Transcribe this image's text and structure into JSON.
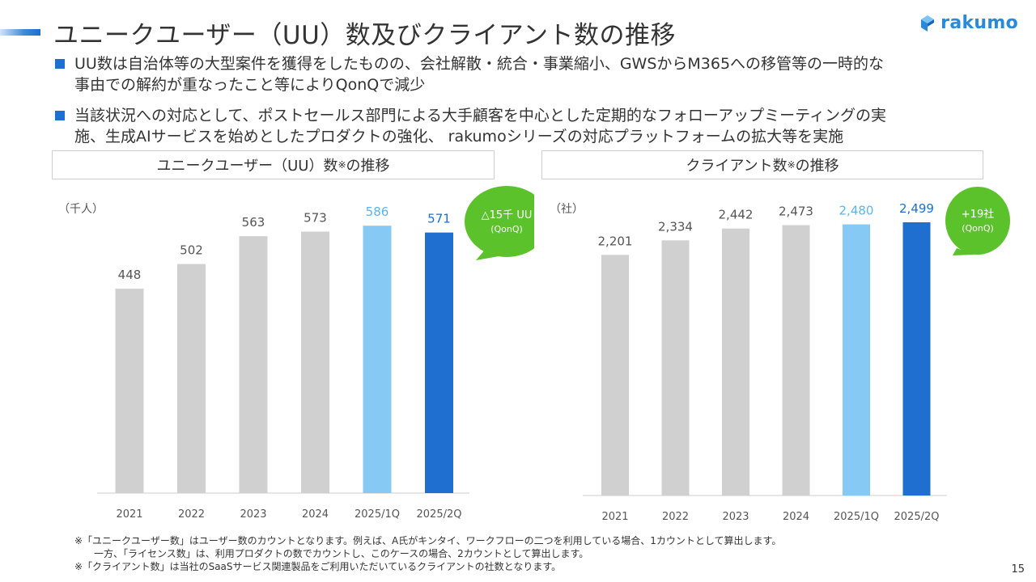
{
  "title": "ユニークユーザー（UU）数及びクライアント数の推移",
  "logo": {
    "text": "rakumo",
    "color": "#2b8ad8"
  },
  "bullets": [
    {
      "line1": "UU数は自治体等の大型案件を獲得をしたものの、会社解散・統合・事業縮小、GWSからM365への移管等の一時的な",
      "line2": "事由での解約が重なったこと等によりQonQで減少"
    },
    {
      "line1": "当該状況への対応として、ポストセールス部門による大手顧客を中心とした定期的なフォローアップミーティングの実",
      "line2": "施、生成AIサービスを始めとしたプロダクトの強化、 rakumoシリーズの対応プラットフォームの拡大等を実施"
    }
  ],
  "colors": {
    "accent": "#1e6fcf",
    "bar_gray": "#d0d0d0",
    "bar_light": "#87c9f5",
    "bar_dark": "#1e6fcf",
    "bubble": "#5cc22c",
    "axis": "#cccccc"
  },
  "chart_data": [
    {
      "type": "bar",
      "title": "ユニークユーザー（UU）数",
      "title_mark": "※",
      "title_suffix": "の推移",
      "unit": "（千人）",
      "categories": [
        "2021",
        "2022",
        "2023",
        "2024",
        "2025/1Q",
        "2025/2Q"
      ],
      "values": [
        448,
        502,
        563,
        573,
        586,
        571
      ],
      "value_labels": [
        "448",
        "502",
        "563",
        "573",
        "586",
        "571"
      ],
      "bar_colors": [
        "#d0d0d0",
        "#d0d0d0",
        "#d0d0d0",
        "#d0d0d0",
        "#87c9f5",
        "#1e6fcf"
      ],
      "label_colors": [
        "#555555",
        "#555555",
        "#555555",
        "#555555",
        "#5ab4ef",
        "#1e6fcf"
      ],
      "ylim": [
        0,
        620
      ],
      "annotation": {
        "line1": "△15千 UU",
        "line2": "(QonQ)"
      }
    },
    {
      "type": "bar",
      "title": "クライアント数",
      "title_mark": "※",
      "title_suffix": "の推移",
      "unit": "（社）",
      "categories": [
        "2021",
        "2022",
        "2023",
        "2024",
        "2025/1Q",
        "2025/2Q"
      ],
      "values": [
        2201,
        2334,
        2442,
        2473,
        2480,
        2499
      ],
      "value_labels": [
        "2,201",
        "2,334",
        "2,442",
        "2,473",
        "2,480",
        "2,499"
      ],
      "bar_colors": [
        "#d0d0d0",
        "#d0d0d0",
        "#d0d0d0",
        "#d0d0d0",
        "#87c9f5",
        "#1e6fcf"
      ],
      "label_colors": [
        "#555555",
        "#555555",
        "#555555",
        "#555555",
        "#5ab4ef",
        "#1e6fcf"
      ],
      "ylim": [
        0,
        2610
      ],
      "annotation": {
        "line1": "+19社",
        "line2": "(QonQ)"
      }
    }
  ],
  "footnotes": [
    "※「ユニークユーザー数」はユーザー数のカウントとなります。例えば、A氏がキンタイ、ワークフローの二つを利用している場合、1カウントとして算出します。",
    "一方、「ライセンス数」は、利用プロダクトの数でカウントし、このケースの場合、2カウントとして算出します。",
    "※「クライアント数」は当社のSaaSサービス関連製品をご利用いただいているクライアントの社数となります。"
  ],
  "page_number": "15"
}
